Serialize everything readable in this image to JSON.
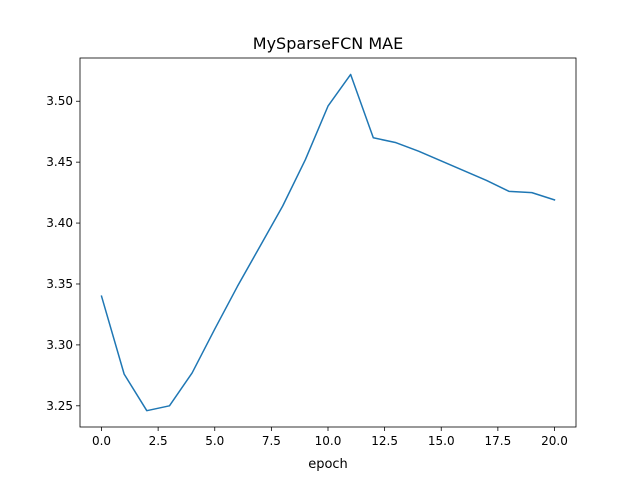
{
  "chart_data": {
    "type": "line",
    "title": "MySparseFCN MAE",
    "xlabel": "epoch",
    "ylabel": "",
    "xlim": [
      -0.95,
      20.95
    ],
    "ylim": [
      3.2326,
      3.5355
    ],
    "x_ticks": [
      0.0,
      2.5,
      5.0,
      7.5,
      10.0,
      12.5,
      15.0,
      17.5,
      20.0
    ],
    "x_tick_labels": [
      "0.0",
      "2.5",
      "5.0",
      "7.5",
      "10.0",
      "12.5",
      "15.0",
      "17.5",
      "20.0"
    ],
    "y_ticks": [
      3.25,
      3.3,
      3.35,
      3.4,
      3.45,
      3.5
    ],
    "y_tick_labels": [
      "3.25",
      "3.30",
      "3.35",
      "3.40",
      "3.45",
      "3.50"
    ],
    "grid": false,
    "legend": "none",
    "series": [
      {
        "color": "#1f77b4",
        "x": [
          0,
          1,
          2,
          3,
          4,
          5,
          6,
          7,
          8,
          9,
          10,
          11,
          12,
          13,
          14,
          15,
          16,
          17,
          18,
          19,
          20
        ],
        "values": [
          3.34,
          3.276,
          3.246,
          3.25,
          3.277,
          3.313,
          3.348,
          3.381,
          3.414,
          3.452,
          3.496,
          3.522,
          3.47,
          3.466,
          3.459,
          3.451,
          3.443,
          3.435,
          3.426,
          3.425,
          3.419
        ]
      }
    ]
  }
}
